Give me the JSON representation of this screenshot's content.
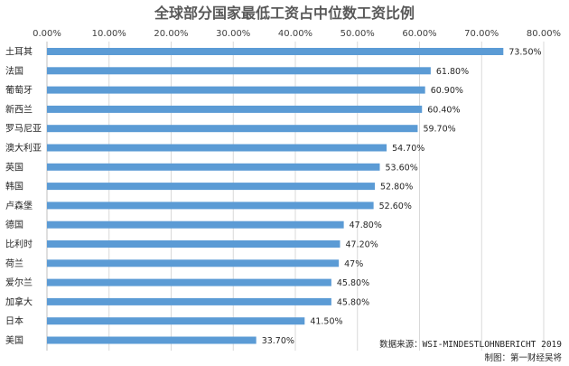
{
  "chart_data": {
    "type": "bar",
    "orientation": "horizontal",
    "title": "全球部分国家最低工资占中位数工资比例",
    "xlim": [
      0,
      80
    ],
    "ticks": [
      "0.00%",
      "10.00%",
      "20.00%",
      "30.00%",
      "40.00%",
      "50.00%",
      "60.00%",
      "70.00%",
      "80.00%"
    ],
    "tick_position": "top",
    "grid": true,
    "categories": [
      "土耳其",
      "法国",
      "葡萄牙",
      "新西兰",
      "罗马尼亚",
      "澳大利亚",
      "英国",
      "韩国",
      "卢森堡",
      "德国",
      "比利时",
      "荷兰",
      "爱尔兰",
      "加拿大",
      "日本",
      "美国"
    ],
    "values": [
      73.5,
      61.8,
      60.9,
      60.4,
      59.7,
      54.7,
      53.6,
      52.8,
      52.6,
      47.8,
      47.2,
      47,
      45.8,
      45.8,
      41.5,
      33.7
    ],
    "data_labels": [
      "73.50%",
      "61.80%",
      "60.90%",
      "60.40%",
      "59.70%",
      "54.70%",
      "53.60%",
      "52.80%",
      "52.60%",
      "47.80%",
      "47.20%",
      "47%",
      "45.80%",
      "45.80%",
      "41.50%",
      "33.70%"
    ],
    "bar_color": "#5b9bd5"
  },
  "footnotes": {
    "source": "数据来源：WSI-MINDESTLOHNBERICHT 2019",
    "author": "制图：第一财经吴将"
  }
}
